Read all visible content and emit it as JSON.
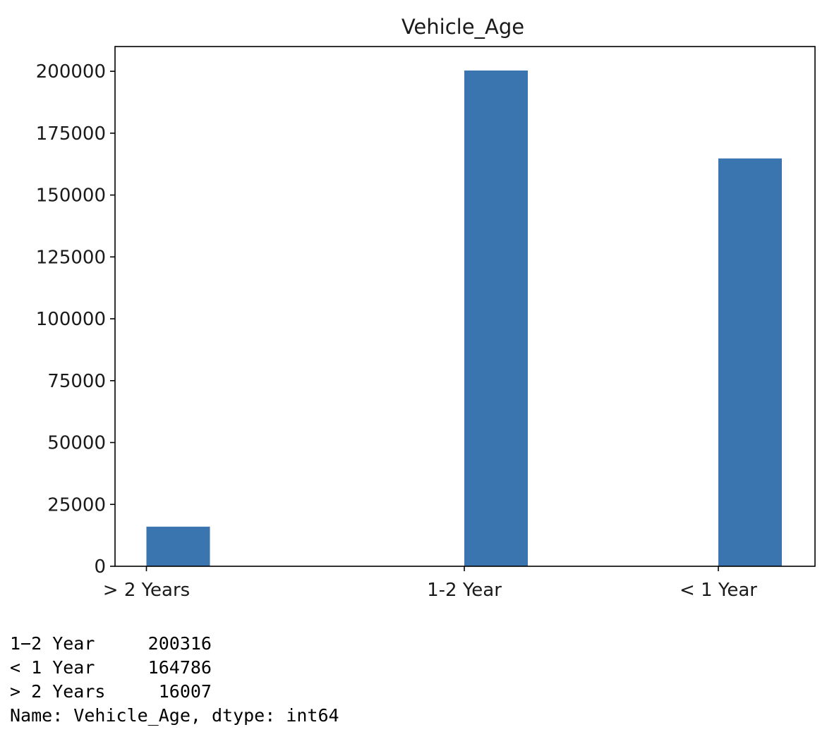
{
  "chart_data": {
    "type": "bar",
    "title": "Vehicle_Age",
    "categories": [
      "> 2 Years",
      "1-2 Year",
      "< 1 Year"
    ],
    "values": [
      16007,
      200316,
      164786
    ],
    "ylim": [
      0,
      210000
    ],
    "yticks": [
      0,
      25000,
      50000,
      75000,
      100000,
      125000,
      150000,
      175000,
      200000
    ],
    "grid": false,
    "bar_color": "#3a75af"
  },
  "output": {
    "lines": [
      "1−2 Year     200316",
      "< 1 Year     164786",
      "> 2 Years     16007",
      "Name: Vehicle_Age, dtype: int64"
    ]
  }
}
